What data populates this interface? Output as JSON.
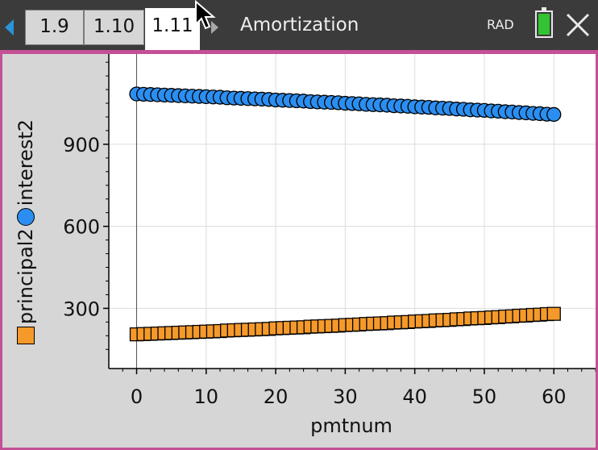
{
  "tabs": [
    {
      "label": "1.9",
      "active": false
    },
    {
      "label": "1.10",
      "active": false
    },
    {
      "label": "1.11",
      "active": true
    }
  ],
  "document_title": "Amortization",
  "angle_mode": "RAD",
  "chart_data": {
    "type": "scatter",
    "title": "",
    "xlabel": "pmtnum",
    "ylabel": [
      "principal2",
      "interest2"
    ],
    "xlim": [
      -4,
      66
    ],
    "ylim": [
      80,
      1230
    ],
    "xticks": [
      0,
      10,
      20,
      30,
      40,
      50,
      60
    ],
    "yticks": [
      300,
      600,
      900
    ],
    "grid": true,
    "series": [
      {
        "name": "interest2",
        "marker": "circle",
        "color": "#2b8ef0",
        "x": [
          0,
          1,
          2,
          3,
          4,
          5,
          6,
          7,
          8,
          9,
          10,
          11,
          12,
          13,
          14,
          15,
          16,
          17,
          18,
          19,
          20,
          21,
          22,
          23,
          24,
          25,
          26,
          27,
          28,
          29,
          30,
          31,
          32,
          33,
          34,
          35,
          36,
          37,
          38,
          39,
          40,
          41,
          42,
          43,
          44,
          45,
          46,
          47,
          48,
          49,
          50,
          51,
          52,
          53,
          54,
          55,
          56,
          57,
          58,
          59,
          60
        ],
        "y": [
          1084,
          1083,
          1082,
          1081,
          1080,
          1079,
          1078,
          1077,
          1076,
          1075,
          1074,
          1073,
          1072,
          1070,
          1069,
          1068,
          1067,
          1066,
          1065,
          1064,
          1062,
          1061,
          1060,
          1059,
          1058,
          1056,
          1055,
          1054,
          1053,
          1052,
          1050,
          1049,
          1048,
          1046,
          1045,
          1044,
          1043,
          1041,
          1040,
          1039,
          1037,
          1036,
          1035,
          1033,
          1032,
          1031,
          1029,
          1028,
          1026,
          1025,
          1024,
          1022,
          1021,
          1019,
          1018,
          1016,
          1015,
          1013,
          1012,
          1010,
          1009
        ]
      },
      {
        "name": "principal2",
        "marker": "square",
        "color": "#f59a2a",
        "x": [
          0,
          1,
          2,
          3,
          4,
          5,
          6,
          7,
          8,
          9,
          10,
          11,
          12,
          13,
          14,
          15,
          16,
          17,
          18,
          19,
          20,
          21,
          22,
          23,
          24,
          25,
          26,
          27,
          28,
          29,
          30,
          31,
          32,
          33,
          34,
          35,
          36,
          37,
          38,
          39,
          40,
          41,
          42,
          43,
          44,
          45,
          46,
          47,
          48,
          49,
          50,
          51,
          52,
          53,
          54,
          55,
          56,
          57,
          58,
          59,
          60
        ],
        "y": [
          205,
          206,
          207,
          208,
          209,
          210,
          211,
          212,
          213,
          214,
          215,
          216,
          217,
          219,
          220,
          221,
          222,
          223,
          224,
          225,
          227,
          228,
          229,
          230,
          231,
          233,
          234,
          235,
          236,
          237,
          239,
          240,
          241,
          243,
          244,
          245,
          246,
          248,
          249,
          250,
          252,
          253,
          254,
          256,
          257,
          258,
          260,
          261,
          263,
          264,
          265,
          267,
          268,
          270,
          271,
          273,
          274,
          276,
          277,
          279,
          280
        ]
      }
    ]
  }
}
